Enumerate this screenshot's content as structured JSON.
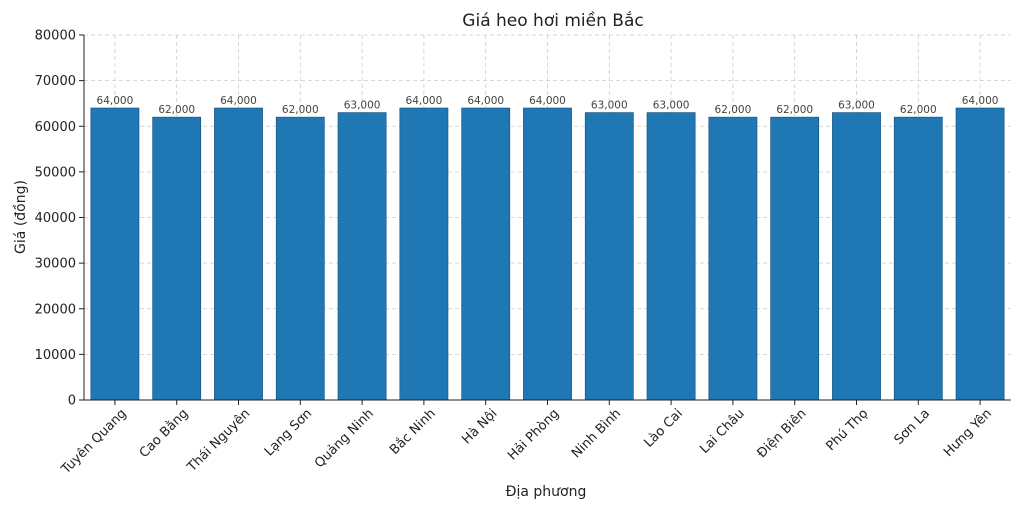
{
  "chart_data": {
    "type": "bar",
    "title": "Giá heo hơi miền Bắc",
    "xlabel": "Địa phương",
    "ylabel": "Giá (đồng)",
    "categories": [
      "Tuyên Quang",
      "Cao Bằng",
      "Thái Nguyên",
      "Lạng Sơn",
      "Quảng Ninh",
      "Bắc Ninh",
      "Hà Nội",
      "Hải Phòng",
      "Ninh Bình",
      "Lào Cai",
      "Lai Châu",
      "Điện Biên",
      "Phú Thọ",
      "Sơn La",
      "Hưng Yên"
    ],
    "values": [
      64000,
      62000,
      64000,
      62000,
      63000,
      64000,
      64000,
      64000,
      63000,
      63000,
      62000,
      62000,
      63000,
      62000,
      64000
    ],
    "data_labels": [
      "64,000",
      "62,000",
      "64,000",
      "62,000",
      "63,000",
      "64,000",
      "64,000",
      "64,000",
      "63,000",
      "63,000",
      "62,000",
      "62,000",
      "63,000",
      "62,000",
      "64,000"
    ],
    "ylim": [
      0,
      80000
    ],
    "yticks": [
      0,
      10000,
      20000,
      30000,
      40000,
      50000,
      60000,
      70000,
      80000
    ],
    "ytick_labels": [
      "0",
      "10000",
      "20000",
      "30000",
      "40000",
      "50000",
      "60000",
      "70000",
      "80000"
    ],
    "grid": true,
    "colors": {
      "bar": "#1f77b4"
    }
  }
}
